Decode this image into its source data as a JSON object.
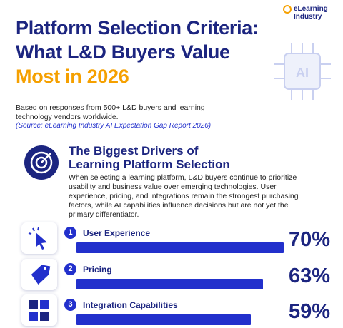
{
  "header": {
    "brand": "eLearning Industry",
    "title": [
      "Platform Selection Criteria:",
      "What L&D Buyers Value",
      "Most in 2026"
    ],
    "subtitle": "Based on responses from 500+ L&D buyers and learning technology vendors worldwide.",
    "source": "(Source: eLearning Industry AI Expectation Gap Report 2026)",
    "badge": "AI"
  },
  "section": {
    "title": [
      "The Biggest Drivers of",
      "Learning Platform Selection"
    ],
    "description": "When selecting a learning platform, L&D buyers continue to prioritize usability and business value over emerging technologies. User experience, pricing, and integrations remain the strongest purchasing factors, while AI capabilities influence decisions but are not yet the primary differentiator."
  },
  "chart_data": {
    "type": "bar",
    "orientation": "horizontal",
    "ranks": [
      1,
      2,
      3
    ],
    "categories": [
      "User Experience",
      "Pricing",
      "Integration Capabilities"
    ],
    "values": [
      70,
      63,
      59
    ],
    "value_labels": [
      "70%",
      "63%",
      "59%"
    ],
    "color": "#2230cc"
  }
}
